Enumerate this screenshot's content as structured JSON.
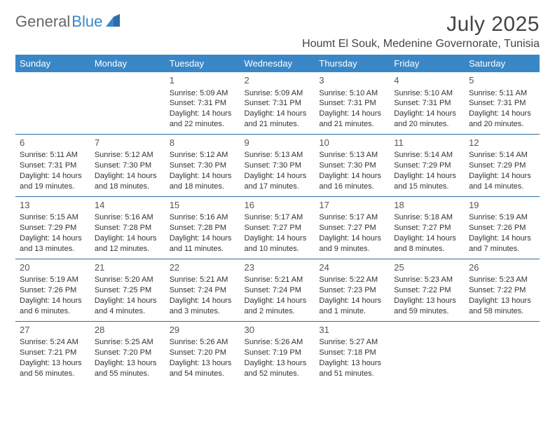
{
  "brand": {
    "part1": "General",
    "part2": "Blue"
  },
  "title": "July 2025",
  "location": "Houmt El Souk, Medenine Governorate, Tunisia",
  "colors": {
    "header_bg": "#3a87c8",
    "header_fg": "#ffffff",
    "cell_border": "#2f6ea6",
    "text": "#333333",
    "title_color": "#444444"
  },
  "days_of_week": [
    "Sunday",
    "Monday",
    "Tuesday",
    "Wednesday",
    "Thursday",
    "Friday",
    "Saturday"
  ],
  "weeks": [
    [
      null,
      null,
      {
        "n": "1",
        "sr": "5:09 AM",
        "ss": "7:31 PM",
        "dl": "14 hours and 22 minutes."
      },
      {
        "n": "2",
        "sr": "5:09 AM",
        "ss": "7:31 PM",
        "dl": "14 hours and 21 minutes."
      },
      {
        "n": "3",
        "sr": "5:10 AM",
        "ss": "7:31 PM",
        "dl": "14 hours and 21 minutes."
      },
      {
        "n": "4",
        "sr": "5:10 AM",
        "ss": "7:31 PM",
        "dl": "14 hours and 20 minutes."
      },
      {
        "n": "5",
        "sr": "5:11 AM",
        "ss": "7:31 PM",
        "dl": "14 hours and 20 minutes."
      }
    ],
    [
      {
        "n": "6",
        "sr": "5:11 AM",
        "ss": "7:31 PM",
        "dl": "14 hours and 19 minutes."
      },
      {
        "n": "7",
        "sr": "5:12 AM",
        "ss": "7:30 PM",
        "dl": "14 hours and 18 minutes."
      },
      {
        "n": "8",
        "sr": "5:12 AM",
        "ss": "7:30 PM",
        "dl": "14 hours and 18 minutes."
      },
      {
        "n": "9",
        "sr": "5:13 AM",
        "ss": "7:30 PM",
        "dl": "14 hours and 17 minutes."
      },
      {
        "n": "10",
        "sr": "5:13 AM",
        "ss": "7:30 PM",
        "dl": "14 hours and 16 minutes."
      },
      {
        "n": "11",
        "sr": "5:14 AM",
        "ss": "7:29 PM",
        "dl": "14 hours and 15 minutes."
      },
      {
        "n": "12",
        "sr": "5:14 AM",
        "ss": "7:29 PM",
        "dl": "14 hours and 14 minutes."
      }
    ],
    [
      {
        "n": "13",
        "sr": "5:15 AM",
        "ss": "7:29 PM",
        "dl": "14 hours and 13 minutes."
      },
      {
        "n": "14",
        "sr": "5:16 AM",
        "ss": "7:28 PM",
        "dl": "14 hours and 12 minutes."
      },
      {
        "n": "15",
        "sr": "5:16 AM",
        "ss": "7:28 PM",
        "dl": "14 hours and 11 minutes."
      },
      {
        "n": "16",
        "sr": "5:17 AM",
        "ss": "7:27 PM",
        "dl": "14 hours and 10 minutes."
      },
      {
        "n": "17",
        "sr": "5:17 AM",
        "ss": "7:27 PM",
        "dl": "14 hours and 9 minutes."
      },
      {
        "n": "18",
        "sr": "5:18 AM",
        "ss": "7:27 PM",
        "dl": "14 hours and 8 minutes."
      },
      {
        "n": "19",
        "sr": "5:19 AM",
        "ss": "7:26 PM",
        "dl": "14 hours and 7 minutes."
      }
    ],
    [
      {
        "n": "20",
        "sr": "5:19 AM",
        "ss": "7:26 PM",
        "dl": "14 hours and 6 minutes."
      },
      {
        "n": "21",
        "sr": "5:20 AM",
        "ss": "7:25 PM",
        "dl": "14 hours and 4 minutes."
      },
      {
        "n": "22",
        "sr": "5:21 AM",
        "ss": "7:24 PM",
        "dl": "14 hours and 3 minutes."
      },
      {
        "n": "23",
        "sr": "5:21 AM",
        "ss": "7:24 PM",
        "dl": "14 hours and 2 minutes."
      },
      {
        "n": "24",
        "sr": "5:22 AM",
        "ss": "7:23 PM",
        "dl": "14 hours and 1 minute."
      },
      {
        "n": "25",
        "sr": "5:23 AM",
        "ss": "7:22 PM",
        "dl": "13 hours and 59 minutes."
      },
      {
        "n": "26",
        "sr": "5:23 AM",
        "ss": "7:22 PM",
        "dl": "13 hours and 58 minutes."
      }
    ],
    [
      {
        "n": "27",
        "sr": "5:24 AM",
        "ss": "7:21 PM",
        "dl": "13 hours and 56 minutes."
      },
      {
        "n": "28",
        "sr": "5:25 AM",
        "ss": "7:20 PM",
        "dl": "13 hours and 55 minutes."
      },
      {
        "n": "29",
        "sr": "5:26 AM",
        "ss": "7:20 PM",
        "dl": "13 hours and 54 minutes."
      },
      {
        "n": "30",
        "sr": "5:26 AM",
        "ss": "7:19 PM",
        "dl": "13 hours and 52 minutes."
      },
      {
        "n": "31",
        "sr": "5:27 AM",
        "ss": "7:18 PM",
        "dl": "13 hours and 51 minutes."
      },
      null,
      null
    ]
  ],
  "labels": {
    "sunrise": "Sunrise:",
    "sunset": "Sunset:",
    "daylight": "Daylight:"
  }
}
